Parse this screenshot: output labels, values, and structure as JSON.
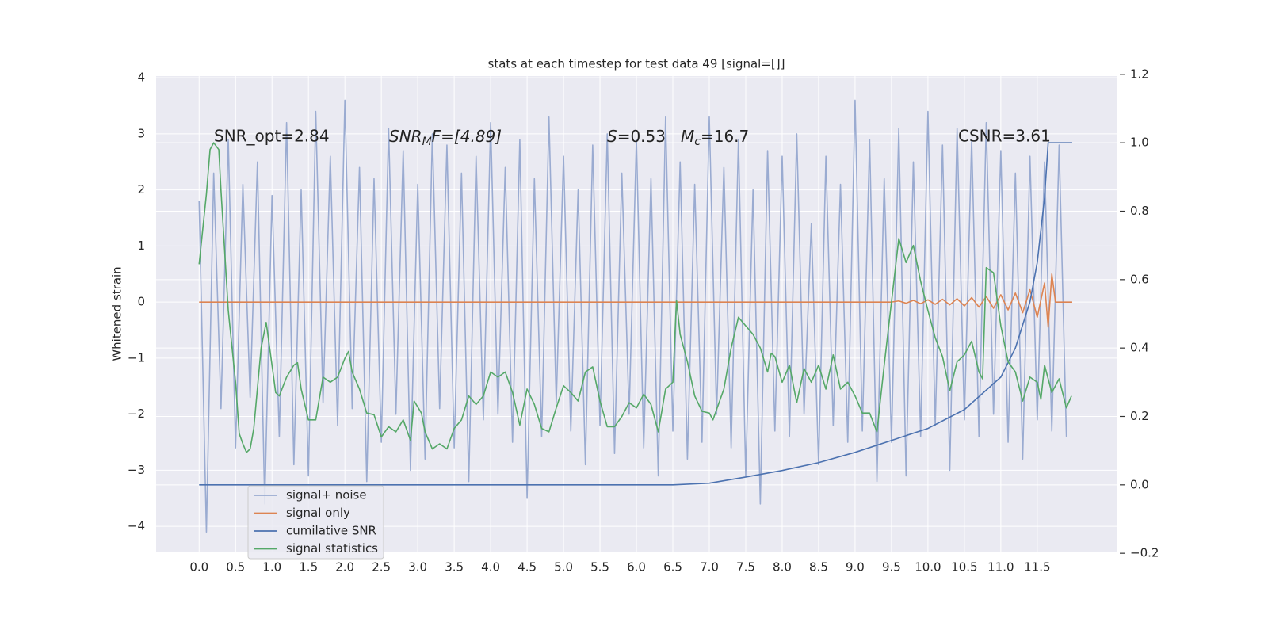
{
  "chart_data": {
    "type": "line",
    "title": "stats at each timestep for test data 49 [signal=[]]",
    "ylabel": "Whitened strain",
    "annotations": [
      [
        "SNR_opt=2.84"
      ],
      [
        "SNR",
        "M",
        "F=[4.89]"
      ],
      [
        "S",
        "=0.53"
      ],
      [
        "M",
        "c",
        "=16.7"
      ],
      [
        "CSNR=3.61"
      ]
    ],
    "xlim": [
      -0.59,
      12.6
    ],
    "xticks": [
      {
        "value": 0,
        "label": "0.0"
      },
      0.5,
      {
        "value": 1,
        "label": "1.0"
      },
      1.5,
      {
        "value": 2,
        "label": "2.0"
      },
      2.5,
      {
        "value": 3,
        "label": "3.0"
      },
      3.5,
      {
        "value": 4,
        "label": "4.0"
      },
      4.5,
      {
        "value": 5,
        "label": "5.0"
      },
      5.5,
      {
        "value": 6,
        "label": "6.0"
      },
      6.5,
      {
        "value": 7,
        "label": "7.0"
      },
      7.5,
      {
        "value": 8,
        "label": "8.0"
      },
      8.5,
      {
        "value": 9,
        "label": "9.0"
      },
      9.5,
      {
        "value": 10,
        "label": "10.0"
      },
      10.5,
      {
        "value": 11,
        "label": "11.0"
      },
      11.5
    ],
    "ylim": [
      -4.45,
      4.03
    ],
    "yticks": [
      {
        "value": -4,
        "label": "−4"
      },
      {
        "value": -3,
        "label": "−3"
      },
      {
        "value": -2,
        "label": "−2"
      },
      {
        "value": -1,
        "label": "−1"
      },
      0,
      1,
      2,
      3,
      4
    ],
    "y2lim": [
      -0.195,
      1.195
    ],
    "y2ticks": [
      {
        "value": -0.2,
        "label": "−0.2"
      },
      {
        "value": 0,
        "label": "0.0"
      },
      0.2,
      0.4,
      0.6,
      0.8,
      {
        "value": 1,
        "label": "1.0"
      },
      1.2
    ],
    "grid": true,
    "legend": "lower left",
    "series": [
      {
        "name": "signal+ noise",
        "color": "#9aabd1",
        "axis": "y",
        "x": [
          0.0,
          0.1,
          0.2,
          0.3,
          0.4,
          0.5,
          0.6,
          0.7,
          0.8,
          0.9,
          1.0,
          1.1,
          1.2,
          1.3,
          1.4,
          1.5,
          1.6,
          1.7,
          1.8,
          1.9,
          2.0,
          2.1,
          2.2,
          2.3,
          2.4,
          2.5,
          2.6,
          2.7,
          2.8,
          2.9,
          3.0,
          3.1,
          3.2,
          3.3,
          3.4,
          3.5,
          3.6,
          3.7,
          3.8,
          3.9,
          4.0,
          4.1,
          4.2,
          4.3,
          4.4,
          4.5,
          4.6,
          4.7,
          4.8,
          4.9,
          5.0,
          5.1,
          5.2,
          5.3,
          5.4,
          5.5,
          5.6,
          5.7,
          5.8,
          5.9,
          6.0,
          6.1,
          6.2,
          6.3,
          6.4,
          6.5,
          6.6,
          6.7,
          6.8,
          6.9,
          7.0,
          7.1,
          7.2,
          7.3,
          7.4,
          7.5,
          7.6,
          7.7,
          7.8,
          7.9,
          8.0,
          8.1,
          8.2,
          8.3,
          8.4,
          8.5,
          8.6,
          8.7,
          8.8,
          8.9,
          9.0,
          9.1,
          9.2,
          9.3,
          9.4,
          9.5,
          9.6,
          9.7,
          9.8,
          9.9,
          10.0,
          10.1,
          10.2,
          10.3,
          10.4,
          10.5,
          10.6,
          10.7,
          10.8,
          10.9,
          11.0,
          11.1,
          11.2,
          11.3,
          11.4,
          11.5,
          11.6,
          11.7,
          11.8,
          11.9
        ],
        "values": [
          1.8,
          -4.1,
          2.3,
          -1.9,
          2.9,
          -2.6,
          2.1,
          -1.7,
          2.5,
          -3.6,
          1.9,
          -2.4,
          3.2,
          -2.9,
          2.0,
          -3.1,
          3.4,
          -1.8,
          2.6,
          -2.2,
          3.6,
          -1.9,
          2.4,
          -3.2,
          2.2,
          -2.5,
          3.1,
          -2.0,
          2.7,
          -3.0,
          2.1,
          -2.8,
          3.0,
          -1.9,
          2.8,
          -2.6,
          2.3,
          -3.2,
          2.6,
          -2.1,
          3.2,
          -2.0,
          2.4,
          -2.5,
          2.9,
          -3.5,
          2.2,
          -2.4,
          3.3,
          -1.8,
          2.6,
          -2.3,
          2.0,
          -2.9,
          2.8,
          -2.2,
          3.0,
          -2.7,
          2.3,
          -2.0,
          2.9,
          -2.6,
          2.2,
          -3.1,
          3.3,
          -2.3,
          2.5,
          -2.8,
          2.1,
          -2.5,
          3.3,
          -2.0,
          2.4,
          -2.6,
          2.9,
          -3.1,
          2.0,
          -3.6,
          2.7,
          -2.3,
          2.6,
          -2.4,
          3.0,
          -2.0,
          1.4,
          -2.9,
          2.6,
          -2.2,
          2.1,
          -2.5,
          3.6,
          -2.3,
          2.9,
          -3.2,
          2.2,
          -2.5,
          3.1,
          -3.1,
          2.5,
          -2.4,
          3.4,
          -2.2,
          2.8,
          -3.0,
          3.1,
          -2.1,
          2.9,
          -2.4,
          3.2,
          -2.0,
          2.7,
          -2.5,
          2.3,
          -2.8,
          2.6,
          -2.1,
          2.5,
          -2.3,
          2.8,
          -2.4
        ]
      },
      {
        "name": "signal only",
        "color": "#dd8452",
        "axis": "y",
        "x": [
          0,
          9.5,
          9.6,
          9.7,
          9.8,
          9.9,
          10.0,
          10.1,
          10.2,
          10.3,
          10.4,
          10.5,
          10.6,
          10.7,
          10.8,
          10.9,
          11.0,
          11.1,
          11.2,
          11.3,
          11.4,
          11.5,
          11.6,
          11.65,
          11.7,
          11.75,
          11.98
        ],
        "values": [
          0,
          0,
          0.02,
          -0.02,
          0.03,
          -0.03,
          0.04,
          -0.04,
          0.05,
          -0.05,
          0.06,
          -0.07,
          0.08,
          -0.09,
          0.1,
          -0.11,
          0.13,
          -0.14,
          0.16,
          -0.19,
          0.22,
          -0.27,
          0.34,
          -0.45,
          0.5,
          0,
          0
        ]
      },
      {
        "name": "cumilative SNR",
        "color": "#4c72b0",
        "axis": "y2",
        "x": [
          0,
          6.5,
          7.0,
          7.5,
          8.0,
          8.5,
          9.0,
          9.5,
          10.0,
          10.5,
          11.0,
          11.2,
          11.4,
          11.5,
          11.6,
          11.65,
          11.98
        ],
        "values": [
          0,
          0,
          0.005,
          0.023,
          0.042,
          0.065,
          0.095,
          0.13,
          0.165,
          0.22,
          0.315,
          0.4,
          0.535,
          0.65,
          0.84,
          1.0,
          1.0
        ]
      },
      {
        "name": "signal statistics",
        "color": "#55a868",
        "axis": "y2",
        "x": [
          0.0,
          0.1,
          0.15,
          0.2,
          0.27,
          0.3,
          0.4,
          0.5,
          0.55,
          0.6,
          0.65,
          0.7,
          0.75,
          0.85,
          0.92,
          1.0,
          1.05,
          1.1,
          1.2,
          1.3,
          1.35,
          1.4,
          1.5,
          1.6,
          1.7,
          1.8,
          1.9,
          2.0,
          2.05,
          2.1,
          2.2,
          2.3,
          2.4,
          2.5,
          2.6,
          2.7,
          2.8,
          2.9,
          2.95,
          3.05,
          3.1,
          3.2,
          3.3,
          3.4,
          3.5,
          3.6,
          3.7,
          3.8,
          3.9,
          4.0,
          4.1,
          4.2,
          4.3,
          4.4,
          4.5,
          4.6,
          4.7,
          4.8,
          4.9,
          5.0,
          5.1,
          5.2,
          5.3,
          5.4,
          5.5,
          5.6,
          5.7,
          5.8,
          5.9,
          6.0,
          6.1,
          6.2,
          6.3,
          6.4,
          6.5,
          6.55,
          6.6,
          6.7,
          6.8,
          6.9,
          7.0,
          7.05,
          7.2,
          7.3,
          7.4,
          7.5,
          7.6,
          7.7,
          7.8,
          7.85,
          7.9,
          8.0,
          8.1,
          8.2,
          8.3,
          8.4,
          8.5,
          8.6,
          8.7,
          8.8,
          8.9,
          9.0,
          9.1,
          9.2,
          9.3,
          9.4,
          9.5,
          9.6,
          9.7,
          9.8,
          9.9,
          10.0,
          10.1,
          10.2,
          10.3,
          10.4,
          10.5,
          10.6,
          10.7,
          10.75,
          10.8,
          10.9,
          11.0,
          11.1,
          11.2,
          11.3,
          11.4,
          11.5,
          11.55,
          11.6,
          11.7,
          11.75,
          11.8,
          11.9,
          11.97
        ],
        "values": [
          0.645,
          0.85,
          0.98,
          1.0,
          0.98,
          0.86,
          0.51,
          0.3,
          0.15,
          0.12,
          0.095,
          0.105,
          0.165,
          0.4,
          0.475,
          0.35,
          0.27,
          0.26,
          0.315,
          0.35,
          0.357,
          0.28,
          0.19,
          0.19,
          0.315,
          0.3,
          0.315,
          0.37,
          0.39,
          0.33,
          0.28,
          0.21,
          0.205,
          0.14,
          0.17,
          0.155,
          0.19,
          0.13,
          0.245,
          0.21,
          0.155,
          0.105,
          0.12,
          0.105,
          0.165,
          0.19,
          0.26,
          0.235,
          0.26,
          0.33,
          0.315,
          0.33,
          0.27,
          0.175,
          0.28,
          0.235,
          0.165,
          0.155,
          0.225,
          0.29,
          0.27,
          0.245,
          0.33,
          0.345,
          0.245,
          0.17,
          0.17,
          0.2,
          0.24,
          0.225,
          0.265,
          0.235,
          0.155,
          0.28,
          0.3,
          0.54,
          0.44,
          0.36,
          0.26,
          0.215,
          0.21,
          0.19,
          0.28,
          0.4,
          0.49,
          0.465,
          0.44,
          0.4,
          0.33,
          0.385,
          0.375,
          0.3,
          0.35,
          0.24,
          0.34,
          0.3,
          0.35,
          0.28,
          0.38,
          0.28,
          0.3,
          0.26,
          0.21,
          0.21,
          0.155,
          0.35,
          0.535,
          0.72,
          0.65,
          0.7,
          0.595,
          0.51,
          0.43,
          0.375,
          0.275,
          0.36,
          0.38,
          0.42,
          0.33,
          0.31,
          0.635,
          0.62,
          0.465,
          0.36,
          0.33,
          0.245,
          0.315,
          0.3,
          0.25,
          0.35,
          0.27,
          0.29,
          0.31,
          0.225,
          0.26
        ]
      }
    ]
  }
}
